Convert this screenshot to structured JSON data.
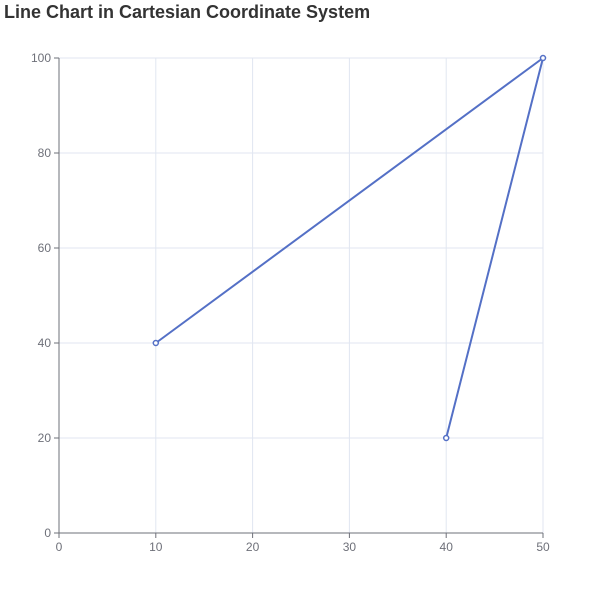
{
  "chart_data": {
    "type": "line",
    "title": "Line Chart in Cartesian Coordinate System",
    "xlabel": "",
    "ylabel": "",
    "xlim": [
      0,
      50
    ],
    "ylim": [
      0,
      100
    ],
    "x_ticks": [
      0,
      10,
      20,
      30,
      40,
      50
    ],
    "y_ticks": [
      0,
      20,
      40,
      60,
      80,
      100
    ],
    "grid": true,
    "legend": null,
    "series": [
      {
        "name": "",
        "color": "#5470c6",
        "points": [
          [
            10,
            40
          ],
          [
            50,
            100
          ],
          [
            40,
            20
          ]
        ]
      }
    ]
  }
}
